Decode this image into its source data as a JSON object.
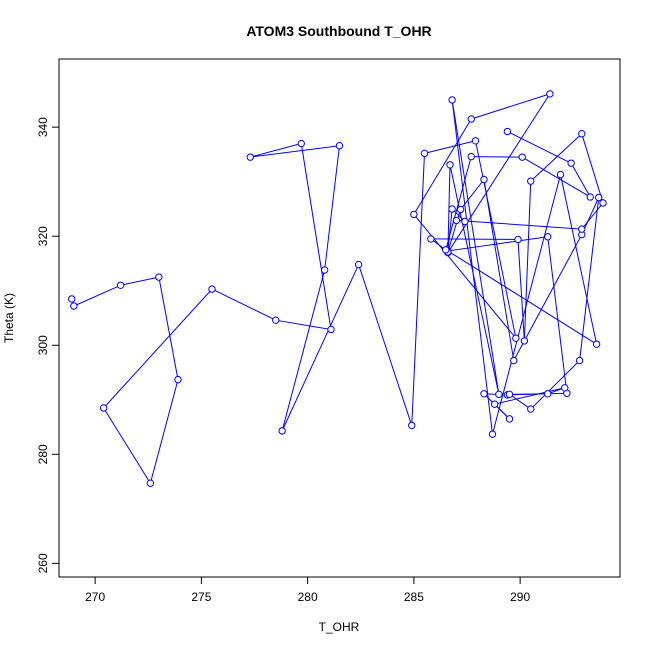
{
  "chart_data": {
    "type": "line",
    "title": "ATOM3 Southbound T_OHR",
    "xlabel": "T_OHR",
    "ylabel": "Theta (K)",
    "xlim": [
      268.3,
      294.7
    ],
    "ylim": [
      257.5,
      352.5
    ],
    "xticks": [
      270,
      275,
      280,
      285,
      290
    ],
    "yticks": [
      260,
      280,
      300,
      320,
      340
    ],
    "grid": false,
    "legend": "none",
    "series_color": "#0000ff",
    "markers": "open-circle",
    "x": [
      268.9,
      269.0,
      271.2,
      273.0,
      273.9,
      272.6,
      270.4,
      275.5,
      278.5,
      281.1,
      279.7,
      277.3,
      281.5,
      280.8,
      278.8,
      282.4,
      284.9,
      285.5,
      287.9,
      289.8,
      285.0,
      287.7,
      291.4,
      286.6,
      286.7,
      289.0,
      286.8,
      288.7,
      291.9,
      293.6,
      286.6,
      291.3,
      292.2,
      289.4,
      288.3,
      289.5,
      288.8,
      292.1,
      291.3,
      289.5,
      290.5,
      292.8,
      293.7,
      292.9,
      289.7,
      288.3,
      287.2,
      286.6,
      286.8,
      287.4,
      287.0,
      292.9,
      293.9,
      292.9,
      290.5,
      290.2,
      289.9,
      285.8,
      286.5,
      287.7,
      290.1,
      293.3,
      292.4,
      289.4
    ],
    "y": [
      308.5,
      307.2,
      311.0,
      312.5,
      293.7,
      274.7,
      288.5,
      310.3,
      304.6,
      302.9,
      337.0,
      334.5,
      336.6,
      313.8,
      284.3,
      314.8,
      285.3,
      335.2,
      337.5,
      301.3,
      324.0,
      341.5,
      346.1,
      317.0,
      333.1,
      291.0,
      345.0,
      283.7,
      331.3,
      300.2,
      317.3,
      319.9,
      291.2,
      290.9,
      291.1,
      286.5,
      289.2,
      292.2,
      291.1,
      291.0,
      288.3,
      297.2,
      327.1,
      320.3,
      297.2,
      330.4,
      324.9,
      317.1,
      325.0,
      322.7,
      322.9,
      321.3,
      326.1,
      338.8,
      330.1,
      300.8,
      319.4,
      319.5,
      317.5,
      334.6,
      334.5,
      327.2,
      333.4,
      339.2
    ]
  }
}
